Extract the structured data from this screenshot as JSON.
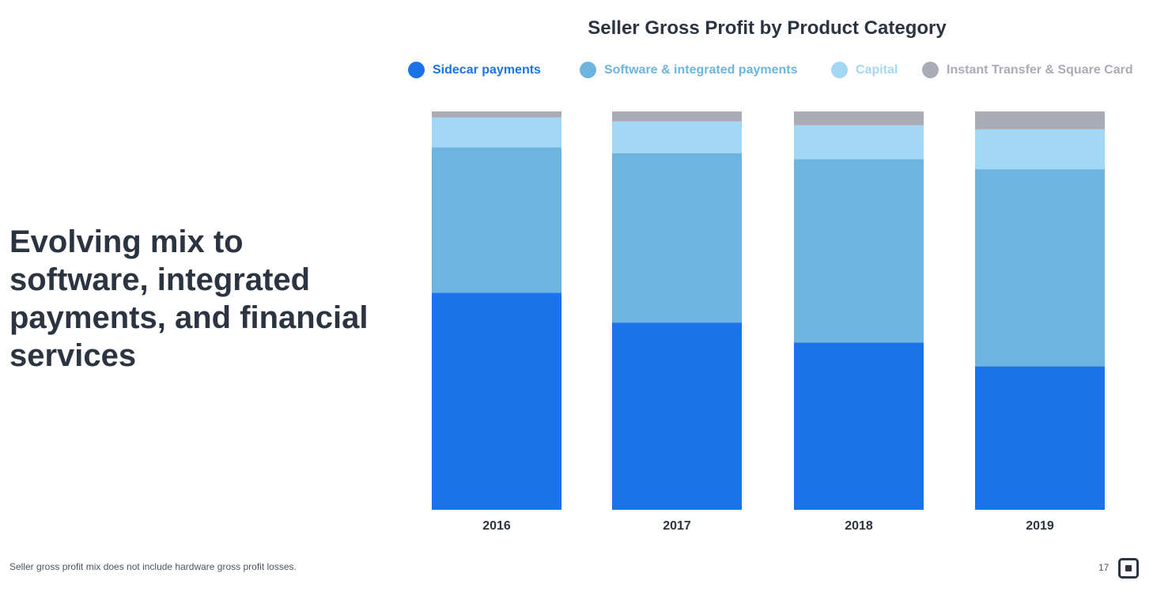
{
  "slide": {
    "headline": "Evolving mix to software, integrated payments, and financial services",
    "footnote": "Seller gross profit mix does not include hardware gross profit losses.",
    "page_number": "17",
    "logo_icon": "square-logo"
  },
  "chart_data": {
    "type": "bar",
    "stacked": true,
    "title": "Seller Gross Profit by Product Category",
    "xlabel": "",
    "ylabel": "",
    "ylim": [
      0,
      100
    ],
    "unit": "percent of seller gross profit",
    "categories": [
      "2016",
      "2017",
      "2018",
      "2019"
    ],
    "series": [
      {
        "name": "Sidecar payments",
        "color": "#1a73e8",
        "values": [
          54.5,
          47,
          42,
          36
        ]
      },
      {
        "name": "Software & integrated payments",
        "color": "#6db5de",
        "values": [
          36.5,
          42.5,
          46,
          49.5
        ]
      },
      {
        "name": "Capital",
        "color": "#a2d7f5",
        "values": [
          7.5,
          8,
          8.5,
          10
        ]
      },
      {
        "name": "Instant Transfer & Square Card",
        "color": "#aaacb5",
        "values": [
          1.5,
          2.5,
          3.5,
          4.5
        ]
      }
    ],
    "legend_position": "top",
    "grid": false
  }
}
